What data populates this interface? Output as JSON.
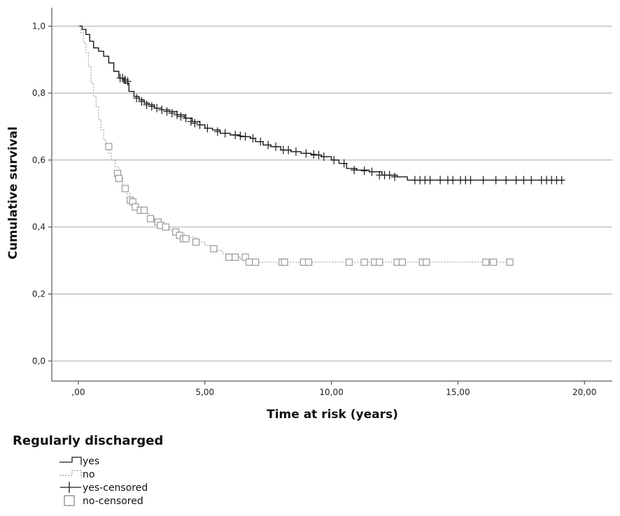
{
  "chart_data": {
    "type": "line",
    "title": "",
    "xlabel": "Time at risk (years)",
    "ylabel": "Cumulative survival",
    "xlim": [
      -1.05,
      21.1
    ],
    "ylim": [
      -0.06,
      1.055
    ],
    "x_ticks": [
      0,
      5,
      10,
      15,
      20
    ],
    "x_tick_labels": [
      ",00",
      "5,00",
      "10,00",
      "15,00",
      "20,00"
    ],
    "y_ticks": [
      0,
      0.2,
      0.4,
      0.6,
      0.8,
      1.0
    ],
    "y_tick_labels": [
      "0,0",
      "0,2",
      "0,4",
      "0,6",
      "0,8",
      "1,0"
    ],
    "grid": "horizontal",
    "legend": {
      "title": "Regularly discharged",
      "placement": "bottom-left",
      "entries": [
        "yes",
        "no",
        "yes-censored",
        "no-censored"
      ]
    },
    "series": [
      {
        "name": "yes",
        "style": "solid-step",
        "color": "#1a1a1a",
        "x": [
          0,
          0.15,
          0.3,
          0.45,
          0.6,
          0.8,
          1.0,
          1.2,
          1.4,
          1.6,
          1.8,
          2.0,
          2.2,
          2.4,
          2.6,
          2.8,
          3.0,
          3.3,
          3.6,
          3.9,
          4.2,
          4.5,
          4.8,
          5.0,
          5.3,
          5.6,
          6.0,
          6.4,
          6.8,
          7.0,
          7.3,
          7.6,
          8.0,
          8.4,
          8.8,
          9.2,
          9.6,
          10.0,
          10.3,
          10.6,
          11.0,
          11.5,
          12.0,
          12.6,
          13.0,
          19.2
        ],
        "y": [
          1.0,
          0.99,
          0.975,
          0.955,
          0.935,
          0.925,
          0.91,
          0.89,
          0.865,
          0.845,
          0.83,
          0.805,
          0.79,
          0.78,
          0.77,
          0.765,
          0.755,
          0.75,
          0.745,
          0.735,
          0.725,
          0.715,
          0.705,
          0.695,
          0.69,
          0.68,
          0.675,
          0.67,
          0.665,
          0.655,
          0.645,
          0.64,
          0.63,
          0.625,
          0.62,
          0.615,
          0.61,
          0.6,
          0.59,
          0.575,
          0.57,
          0.565,
          0.555,
          0.55,
          0.54,
          0.54
        ]
      },
      {
        "name": "no",
        "style": "dotted-step",
        "color": "#999999",
        "x": [
          0,
          0.1,
          0.2,
          0.3,
          0.4,
          0.5,
          0.6,
          0.7,
          0.8,
          0.9,
          1.0,
          1.1,
          1.2,
          1.3,
          1.45,
          1.6,
          1.75,
          1.9,
          2.05,
          2.2,
          2.4,
          2.6,
          2.8,
          3.0,
          3.3,
          3.6,
          3.9,
          4.2,
          4.6,
          5.0,
          5.4,
          5.7,
          6.0,
          6.4,
          6.8,
          17.1
        ],
        "y": [
          1.0,
          0.98,
          0.95,
          0.92,
          0.88,
          0.83,
          0.79,
          0.76,
          0.72,
          0.69,
          0.66,
          0.64,
          0.62,
          0.6,
          0.58,
          0.55,
          0.52,
          0.5,
          0.48,
          0.46,
          0.45,
          0.44,
          0.43,
          0.415,
          0.4,
          0.39,
          0.38,
          0.37,
          0.355,
          0.345,
          0.33,
          0.32,
          0.31,
          0.305,
          0.295,
          0.295
        ]
      }
    ],
    "censored": [
      {
        "name": "yes-censored",
        "marker": "plus",
        "color": "#1a1a1a",
        "x": [
          1.65,
          1.75,
          1.85,
          1.95,
          2.3,
          2.5,
          2.7,
          2.9,
          3.1,
          3.3,
          3.5,
          3.7,
          3.9,
          4.05,
          4.25,
          4.45,
          4.6,
          4.8,
          5.1,
          5.5,
          5.8,
          6.2,
          6.4,
          6.6,
          6.9,
          7.2,
          7.5,
          7.8,
          8.1,
          8.3,
          8.6,
          9.0,
          9.3,
          9.5,
          9.7,
          10.1,
          10.5,
          10.9,
          11.3,
          11.6,
          11.9,
          12.1,
          12.3,
          12.5,
          13.3,
          13.5,
          13.7,
          13.9,
          14.3,
          14.6,
          14.8,
          15.1,
          15.3,
          15.5,
          16.0,
          16.5,
          16.9,
          17.3,
          17.6,
          17.9,
          18.3,
          18.5,
          18.7,
          18.9,
          19.1
        ],
        "y": [
          0.845,
          0.845,
          0.84,
          0.835,
          0.785,
          0.775,
          0.765,
          0.76,
          0.755,
          0.75,
          0.745,
          0.74,
          0.735,
          0.73,
          0.725,
          0.715,
          0.71,
          0.705,
          0.695,
          0.685,
          0.68,
          0.675,
          0.672,
          0.67,
          0.665,
          0.655,
          0.645,
          0.64,
          0.63,
          0.63,
          0.625,
          0.62,
          0.617,
          0.615,
          0.61,
          0.6,
          0.59,
          0.57,
          0.568,
          0.565,
          0.555,
          0.555,
          0.555,
          0.55,
          0.54,
          0.54,
          0.54,
          0.54,
          0.54,
          0.54,
          0.54,
          0.54,
          0.54,
          0.54,
          0.54,
          0.54,
          0.54,
          0.54,
          0.54,
          0.54,
          0.54,
          0.54,
          0.54,
          0.54,
          0.54
        ]
      },
      {
        "name": "no-censored",
        "marker": "square",
        "color": "#999999",
        "x": [
          1.2,
          1.55,
          1.6,
          1.85,
          2.05,
          2.15,
          2.25,
          2.45,
          2.6,
          2.85,
          3.15,
          3.25,
          3.45,
          3.85,
          4.0,
          4.15,
          4.25,
          4.65,
          5.35,
          5.95,
          6.2,
          6.6,
          6.75,
          7.0,
          8.05,
          8.15,
          8.9,
          9.1,
          10.7,
          11.3,
          11.7,
          11.9,
          12.6,
          12.8,
          13.6,
          13.75,
          16.1,
          16.4,
          17.05
        ],
        "y": [
          0.64,
          0.56,
          0.545,
          0.515,
          0.48,
          0.475,
          0.46,
          0.45,
          0.45,
          0.425,
          0.415,
          0.405,
          0.4,
          0.385,
          0.375,
          0.365,
          0.365,
          0.355,
          0.335,
          0.31,
          0.31,
          0.31,
          0.295,
          0.295,
          0.295,
          0.295,
          0.295,
          0.295,
          0.295,
          0.295,
          0.295,
          0.295,
          0.295,
          0.295,
          0.295,
          0.295,
          0.295,
          0.295,
          0.295
        ]
      }
    ]
  }
}
